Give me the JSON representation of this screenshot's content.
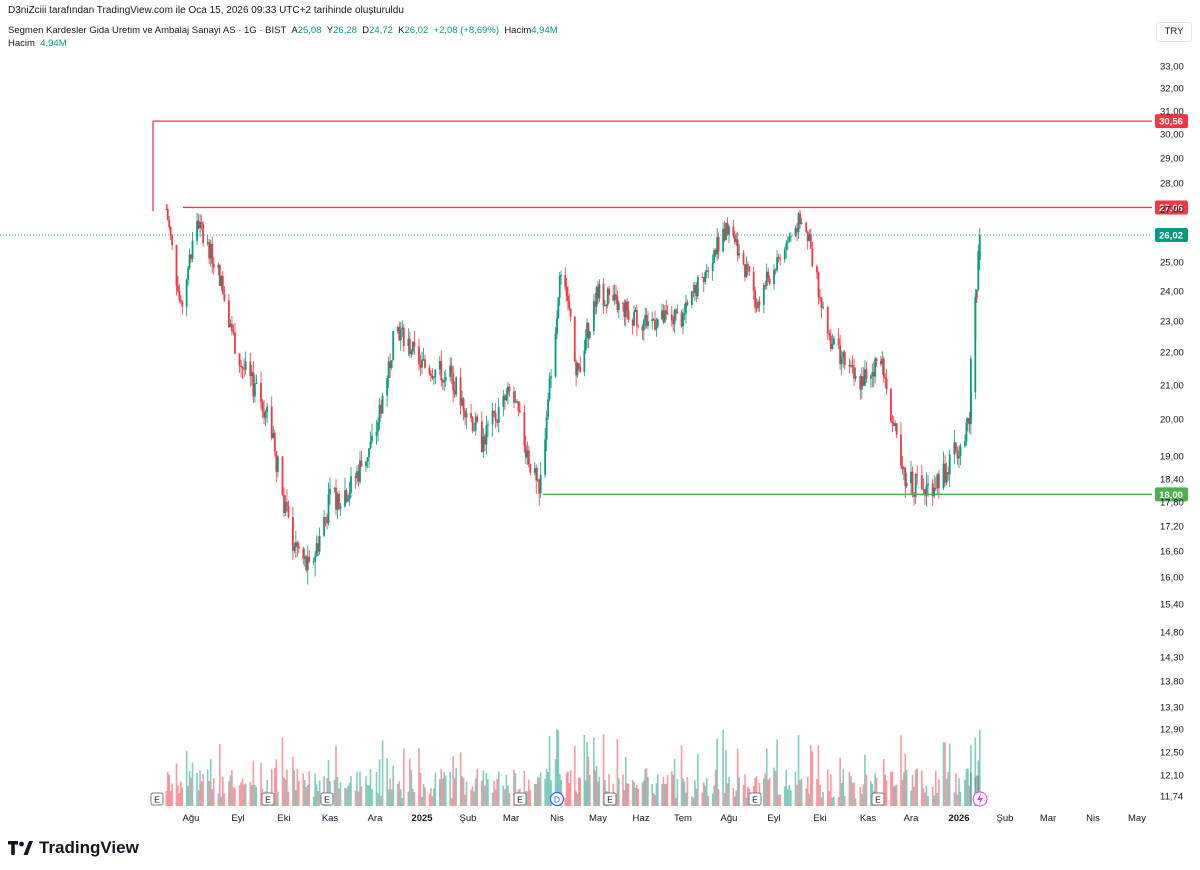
{
  "header": {
    "credit": "D3niZciii tarafından TradingView.com ile Oca 15, 2026 09:33 UTC+2 tarihinde oluşturuldu",
    "symbol": "Segmen Kardesler Gida Uretim ve Ambalaj Sanayi AS · 1G · BIST",
    "open_label": "A",
    "open": "25,08",
    "high_label": "Y",
    "high": "26,28",
    "low_label": "D",
    "low": "24,72",
    "close_label": "K",
    "close": "26,02",
    "change": "+2,08 (+8,69%)",
    "volume_label": "Hacim",
    "volume": "4,94M",
    "volume_label2": "Hacim",
    "volume2": "4,94M",
    "currency": "TRY"
  },
  "brand": {
    "name": "TradingView"
  },
  "chart_data": {
    "type": "candlestick",
    "y_axis_ticks": [
      "33,00",
      "32,00",
      "31,00",
      "30,00",
      "29,00",
      "28,00",
      "27,00",
      "25,00",
      "24,00",
      "23,00",
      "22,00",
      "21,00",
      "20,00",
      "19,00",
      "18,40",
      "17,80",
      "17,20",
      "16,60",
      "16,00",
      "15,40",
      "14,80",
      "14,30",
      "13,80",
      "13,30",
      "12,90",
      "12,50",
      "12,10",
      "11,74"
    ],
    "x_axis_ticks": [
      "Ağu",
      "Eyl",
      "Eki",
      "Kas",
      "Ara",
      "2025",
      "Şub",
      "Mar",
      "Nis",
      "May",
      "Haz",
      "Tem",
      "Ağu",
      "Eyl",
      "Eki",
      "Kas",
      "Ara",
      "2026",
      "Şub",
      "Mar",
      "Nis",
      "May"
    ],
    "y_range": [
      11.6,
      33.6
    ],
    "horizontal_lines": [
      {
        "value": 30.56,
        "label": "30,56",
        "color": "#f23645"
      },
      {
        "value": 27.06,
        "label": "27,06",
        "color": "#f23645"
      },
      {
        "value": 18.0,
        "label": "18,00",
        "color": "#4caf50"
      }
    ],
    "last_price": {
      "value": 26.02,
      "label": "26,02",
      "color": "#089981"
    },
    "event_markers": [
      "E",
      "E",
      "E",
      "E",
      "E",
      "D",
      "E",
      "E",
      "E",
      "E"
    ],
    "ohlc_outline": [
      [
        "2024-07-15",
        27.0
      ],
      [
        "2024-07-25",
        23.3
      ],
      [
        "2024-08-05",
        26.6
      ],
      [
        "2024-08-20",
        24.5
      ],
      [
        "2024-09-01",
        21.8
      ],
      [
        "2024-09-20",
        20.2
      ],
      [
        "2024-10-05",
        17.0
      ],
      [
        "2024-10-18",
        16.1
      ],
      [
        "2024-11-01",
        17.8
      ],
      [
        "2024-11-15",
        18.2
      ],
      [
        "2024-12-01",
        19.5
      ],
      [
        "2024-12-15",
        22.8
      ],
      [
        "2025-01-01",
        21.6
      ],
      [
        "2025-01-20",
        21.3
      ],
      [
        "2025-02-10",
        19.4
      ],
      [
        "2025-03-01",
        20.8
      ],
      [
        "2025-03-20",
        17.9
      ],
      [
        "2025-04-05",
        25.2
      ],
      [
        "2025-04-15",
        21.2
      ],
      [
        "2025-05-01",
        24.0
      ],
      [
        "2025-06-01",
        23.0
      ],
      [
        "2025-07-01",
        23.1
      ],
      [
        "2025-08-01",
        26.5
      ],
      [
        "2025-08-20",
        23.6
      ],
      [
        "2025-09-20",
        26.8
      ],
      [
        "2025-10-05",
        22.7
      ],
      [
        "2025-10-25",
        21.0
      ],
      [
        "2025-11-10",
        21.8
      ],
      [
        "2025-11-25",
        18.4
      ],
      [
        "2025-12-10",
        18.1
      ],
      [
        "2025-12-25",
        18.7
      ],
      [
        "2026-01-08",
        20.0
      ],
      [
        "2026-01-15",
        26.02
      ]
    ]
  }
}
